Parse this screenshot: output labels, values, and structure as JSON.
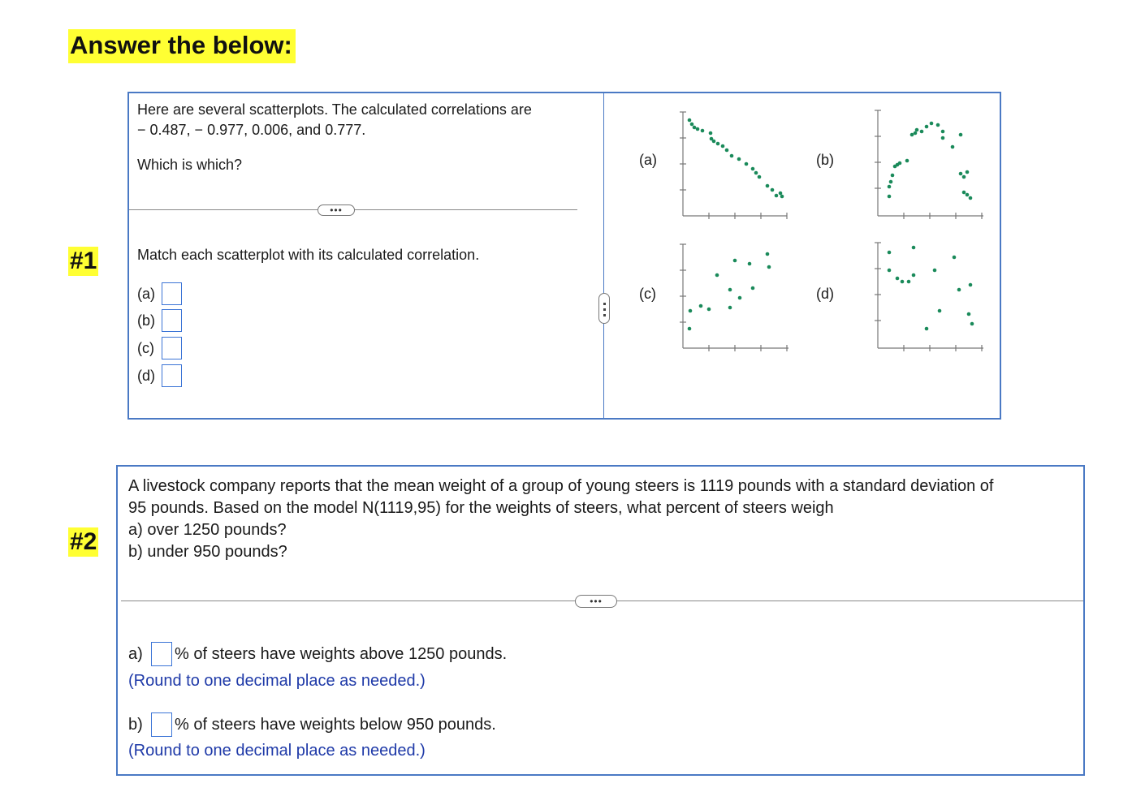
{
  "heading": "Answer the below:",
  "q1": {
    "number": "#1",
    "intro_line1": "Here are several scatterplots. The calculated correlations are",
    "intro_line2": "− 0.487,  − 0.977, 0.006, and 0.777.",
    "question": "Which is which?",
    "more": "•••",
    "instruction": "Match each scatterplot with its calculated correlation.",
    "match_labels": [
      "(a)",
      "(b)",
      "(c)",
      "(d)"
    ],
    "match_values": [
      "",
      "",
      "",
      ""
    ],
    "plot_labels": [
      "(a)",
      "(b)",
      "(c)",
      "(d)"
    ],
    "dot_color": "#1a8a5a"
  },
  "q2": {
    "number": "#2",
    "line1": "A livestock company reports that the mean weight of a group of young steers is 1119 pounds with a standard deviation of",
    "line2": "95 pounds. Based on the model N(1119,95) for the weights of steers, what percent of steers weigh",
    "line3": "a) over 1250 pounds?",
    "line4": "b) under 950 pounds?",
    "more": "•••",
    "ans_a_prefix": "a)",
    "ans_a_suffix": "% of steers have weights above 1250 pounds.",
    "ans_a_hint": "(Round to one decimal place as needed.)",
    "ans_b_prefix": "b)",
    "ans_b_suffix": "% of steers have weights below 950 pounds.",
    "ans_b_hint": "(Round to one decimal place as needed.)",
    "ans_a_value": "",
    "ans_b_value": ""
  },
  "colors": {
    "highlight": "#ffff33",
    "panel_border": "#4a79c4",
    "input_border": "#3b74d6",
    "hint_text": "#1f3aa8"
  }
}
